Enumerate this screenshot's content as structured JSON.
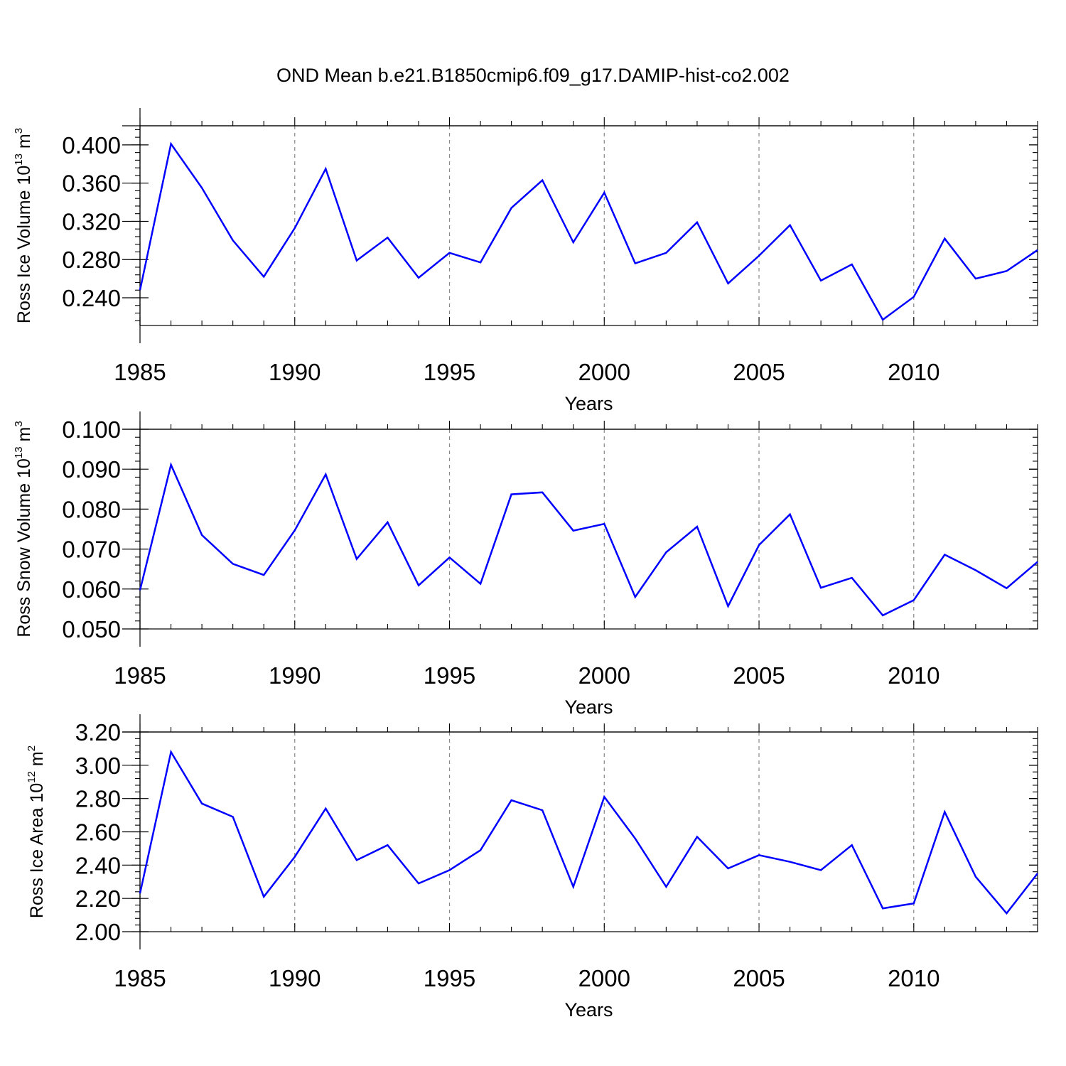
{
  "title": "OND Mean b.e21.B1850cmip6.f09_g17.DAMIP-hist-co2.002",
  "chart_data": [
    {
      "type": "line",
      "ylabel": {
        "prefix": "Ross Ice Volume 10",
        "exponent": "13",
        "unit": " m",
        "unit_exponent": "3"
      },
      "xlabel": "Years",
      "xlim": [
        1985,
        2014
      ],
      "ylim": [
        0.211,
        0.42
      ],
      "xticks": [
        1985,
        1990,
        1995,
        2000,
        2005,
        2010
      ],
      "xtick_labels": [
        "1985",
        "1990",
        "1995",
        "2000",
        "2005",
        "2010"
      ],
      "yticks": [
        0.24,
        0.28,
        0.32,
        0.36,
        0.4
      ],
      "ytick_labels": [
        "0.240",
        "0.280",
        "0.320",
        "0.360",
        "0.400"
      ],
      "ytick_minor_step": 0.008,
      "vgrid": "dashed at major x ticks",
      "line_color": "#0000ff",
      "series": [
        {
          "name": "Ross Ice Volume",
          "x": [
            1985,
            1986,
            1987,
            1988,
            1989,
            1990,
            1991,
            1992,
            1993,
            1994,
            1995,
            1996,
            1997,
            1998,
            1999,
            2000,
            2001,
            2002,
            2003,
            2004,
            2005,
            2006,
            2007,
            2008,
            2009,
            2010,
            2011,
            2012,
            2013,
            2014
          ],
          "values": [
            0.248,
            0.401,
            0.355,
            0.3,
            0.262,
            0.313,
            0.375,
            0.279,
            0.303,
            0.261,
            0.287,
            0.277,
            0.334,
            0.363,
            0.298,
            0.35,
            0.276,
            0.287,
            0.319,
            0.255,
            0.284,
            0.316,
            0.258,
            0.275,
            0.217,
            0.241,
            0.302,
            0.26,
            0.268,
            0.29
          ]
        }
      ]
    },
    {
      "type": "line",
      "ylabel": {
        "prefix": "Ross Snow Volume 10",
        "exponent": "13",
        "unit": " m",
        "unit_exponent": "3"
      },
      "xlabel": "Years",
      "xlim": [
        1985,
        2014
      ],
      "ylim": [
        0.05,
        0.1
      ],
      "xticks": [
        1985,
        1990,
        1995,
        2000,
        2005,
        2010
      ],
      "xtick_labels": [
        "1985",
        "1990",
        "1995",
        "2000",
        "2005",
        "2010"
      ],
      "yticks": [
        0.05,
        0.06,
        0.07,
        0.08,
        0.09,
        0.1
      ],
      "ytick_labels": [
        "0.050",
        "0.060",
        "0.070",
        "0.080",
        "0.090",
        "0.100"
      ],
      "ytick_minor_step": 0.002,
      "vgrid": "dashed at major x ticks",
      "line_color": "#0000ff",
      "series": [
        {
          "name": "Ross Snow Volume",
          "x": [
            1985,
            1986,
            1987,
            1988,
            1989,
            1990,
            1991,
            1992,
            1993,
            1994,
            1995,
            1996,
            1997,
            1998,
            1999,
            2000,
            2001,
            2002,
            2003,
            2004,
            2005,
            2006,
            2007,
            2008,
            2009,
            2010,
            2011,
            2012,
            2013,
            2014
          ],
          "values": [
            0.0597,
            0.0911,
            0.0735,
            0.0663,
            0.0635,
            0.0747,
            0.0887,
            0.0675,
            0.0767,
            0.0609,
            0.0679,
            0.0613,
            0.0837,
            0.0842,
            0.0746,
            0.0763,
            0.058,
            0.0692,
            0.0756,
            0.0557,
            0.071,
            0.0787,
            0.0603,
            0.0628,
            0.0534,
            0.0572,
            0.0686,
            0.0647,
            0.0602,
            0.0668
          ]
        }
      ]
    },
    {
      "type": "line",
      "ylabel": {
        "prefix": "Ross Ice Area 10",
        "exponent": "12",
        "unit": " m",
        "unit_exponent": "2"
      },
      "xlabel": "Years",
      "xlim": [
        1985,
        2014
      ],
      "ylim": [
        2.0,
        3.2
      ],
      "xticks": [
        1985,
        1990,
        1995,
        2000,
        2005,
        2010
      ],
      "xtick_labels": [
        "1985",
        "1990",
        "1995",
        "2000",
        "2005",
        "2010"
      ],
      "yticks": [
        2.0,
        2.2,
        2.4,
        2.6,
        2.8,
        3.0,
        3.2
      ],
      "ytick_labels": [
        "2.00",
        "2.20",
        "2.40",
        "2.60",
        "2.80",
        "3.00",
        "3.20"
      ],
      "ytick_minor_step": 0.04,
      "vgrid": "dashed at major x ticks",
      "line_color": "#0000ff",
      "series": [
        {
          "name": "Ross Ice Area",
          "x": [
            1985,
            1986,
            1987,
            1988,
            1989,
            1990,
            1991,
            1992,
            1993,
            1994,
            1995,
            1996,
            1997,
            1998,
            1999,
            2000,
            2001,
            2002,
            2003,
            2004,
            2005,
            2006,
            2007,
            2008,
            2009,
            2010,
            2011,
            2012,
            2013,
            2014
          ],
          "values": [
            2.23,
            3.08,
            2.77,
            2.69,
            2.21,
            2.45,
            2.74,
            2.43,
            2.52,
            2.29,
            2.37,
            2.49,
            2.79,
            2.73,
            2.27,
            2.81,
            2.56,
            2.27,
            2.57,
            2.38,
            2.46,
            2.42,
            2.37,
            2.52,
            2.14,
            2.17,
            2.72,
            2.33,
            2.11,
            2.35
          ]
        }
      ]
    }
  ]
}
